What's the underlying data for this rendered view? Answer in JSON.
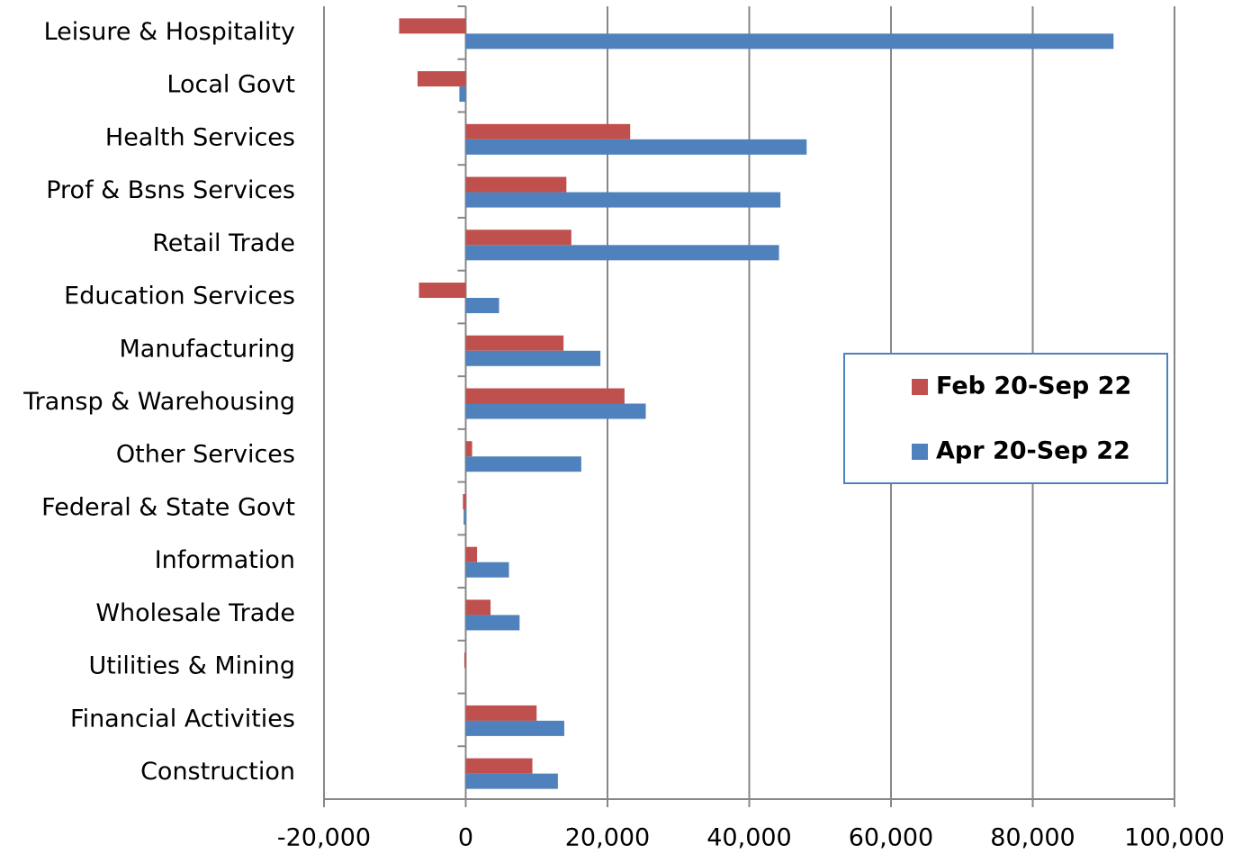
{
  "chart_data": {
    "type": "bar",
    "orientation": "horizontal",
    "categories": [
      "Leisure & Hospitality",
      "Local Govt",
      "Health Services",
      "Prof & Bsns Services",
      "Retail Trade",
      "Education Services",
      "Manufacturing",
      "Transp & Warehousing",
      "Other Services",
      "Federal & State Govt",
      "Information",
      "Wholesale Trade",
      "Utilities & Mining",
      "Financial Activities",
      "Construction"
    ],
    "series": [
      {
        "name": "Feb 20-Sep 22",
        "color": "#c0504d",
        "values": [
          -9400,
          -6800,
          23200,
          14200,
          14900,
          -6600,
          13800,
          22400,
          900,
          -400,
          1600,
          3500,
          -200,
          10000,
          9400
        ]
      },
      {
        "name": "Apr 20-Sep 22",
        "color": "#4f81bd",
        "values": [
          91400,
          -900,
          48100,
          44400,
          44200,
          4700,
          19000,
          25400,
          16300,
          -300,
          6100,
          7600,
          0,
          13900,
          13000
        ]
      }
    ],
    "xlim": [
      -20000,
      100000
    ],
    "xticks": [
      {
        "value": -20000,
        "label": "-20,000"
      },
      0,
      {
        "value": 20000,
        "label": "20,000"
      },
      {
        "value": 40000,
        "label": "40,000"
      },
      {
        "value": 60000,
        "label": "60,000"
      },
      {
        "value": 80000,
        "label": "80,000"
      },
      {
        "value": 100000,
        "label": "100,000"
      }
    ],
    "grid": true,
    "legend": "center right"
  }
}
